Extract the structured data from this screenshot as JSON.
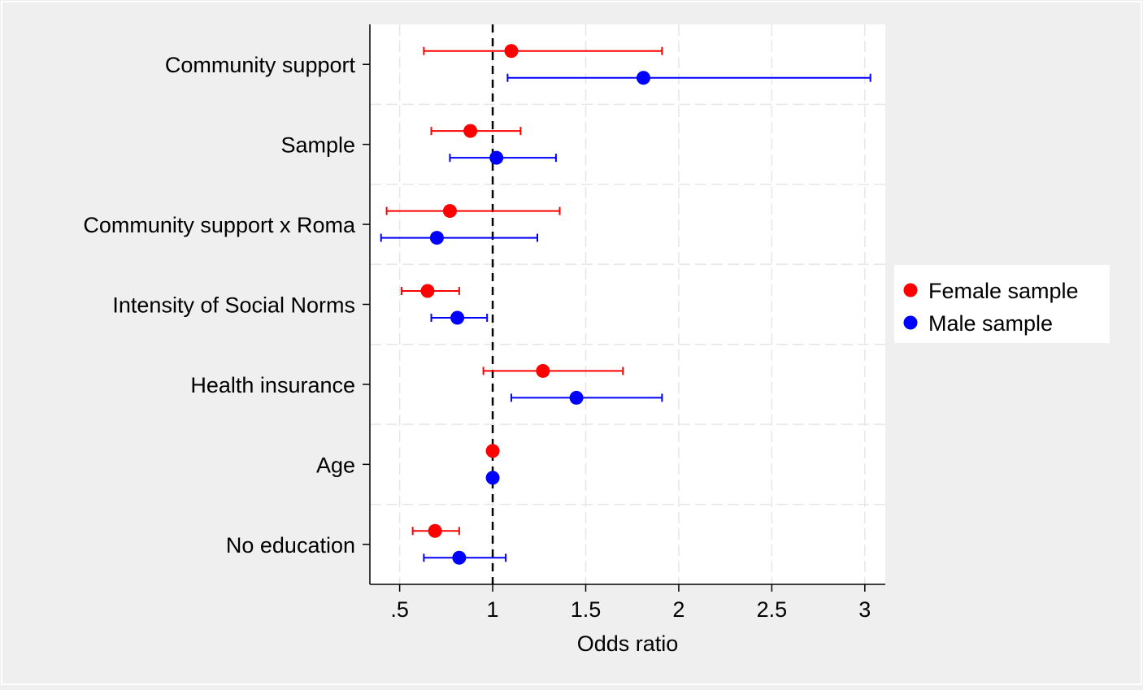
{
  "chart_data": {
    "type": "scatter",
    "subtype": "coefficient-plot-horizontal",
    "title": "",
    "xlabel": "Odds ratio",
    "ylabel": "",
    "xlim": [
      0.34,
      3.11
    ],
    "x_ticks": [
      0.5,
      1,
      1.5,
      2,
      2.5,
      3
    ],
    "x_tick_labels": [
      ".5",
      "1",
      "1.5",
      "2",
      "2.5",
      "3"
    ],
    "reference_line": 1,
    "grid": true,
    "legend_position": "right",
    "categories": [
      "Community support",
      "Sample",
      "Community support x Roma",
      "Intensity of Social Norms",
      "Health insurance",
      "Age",
      "No education"
    ],
    "series": [
      {
        "name": "Female sample",
        "color": "#ff0000",
        "estimates": [
          1.1,
          0.88,
          0.77,
          0.65,
          1.27,
          1.0,
          0.69
        ],
        "ci_low": [
          0.63,
          0.67,
          0.43,
          0.51,
          0.95,
          1.0,
          0.57
        ],
        "ci_high": [
          1.91,
          1.15,
          1.36,
          0.82,
          1.7,
          1.0,
          0.82
        ]
      },
      {
        "name": "Male sample",
        "color": "#0000ff",
        "estimates": [
          1.81,
          1.02,
          0.7,
          0.81,
          1.45,
          1.0,
          0.82
        ],
        "ci_low": [
          1.08,
          0.77,
          0.4,
          0.67,
          1.1,
          1.0,
          0.63
        ],
        "ci_high": [
          3.03,
          1.34,
          1.24,
          0.97,
          1.91,
          1.0,
          1.07
        ]
      }
    ]
  }
}
